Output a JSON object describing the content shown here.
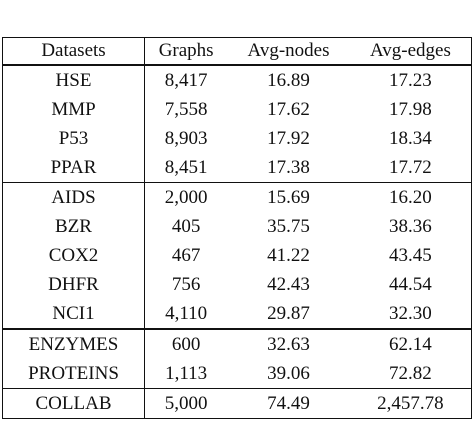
{
  "table": {
    "header": [
      "Datasets",
      "Graphs",
      "Avg-nodes",
      "Avg-edges"
    ],
    "rows": [
      [
        "HSE",
        "8,417",
        "16.89",
        "17.23"
      ],
      [
        "MMP",
        "7,558",
        "17.62",
        "17.98"
      ],
      [
        "P53",
        "8,903",
        "17.92",
        "18.34"
      ],
      [
        "PPAR",
        "8,451",
        "17.38",
        "17.72"
      ],
      [
        "AIDS",
        "2,000",
        "15.69",
        "16.20"
      ],
      [
        "BZR",
        "405",
        "35.75",
        "38.36"
      ],
      [
        "COX2",
        "467",
        "41.22",
        "43.45"
      ],
      [
        "DHFR",
        "756",
        "42.43",
        "44.54"
      ],
      [
        "NCI1",
        "4,110",
        "29.87",
        "32.30"
      ],
      [
        "ENZYMES",
        "600",
        "32.63",
        "62.14"
      ],
      [
        "PROTEINS",
        "1,113",
        "39.06",
        "72.82"
      ],
      [
        "COLLAB",
        "5,000",
        "74.49",
        "2,457.78"
      ]
    ]
  }
}
